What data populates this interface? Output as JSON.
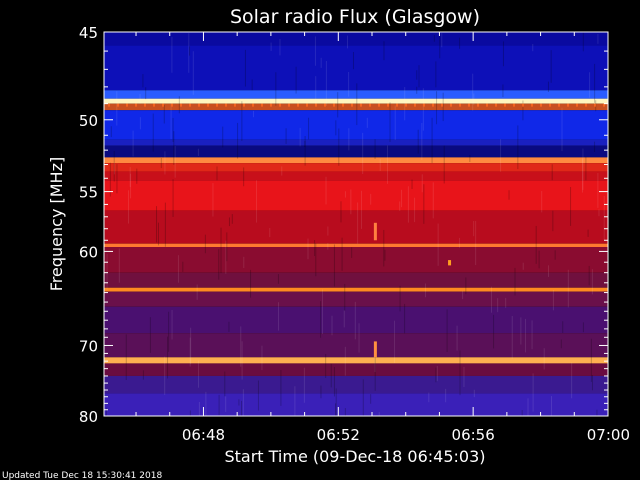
{
  "chart_data": {
    "type": "heatmap",
    "title": "Solar radio Flux (Glasgow)",
    "xlabel": "Start Time (09-Dec-18 06:45:03)",
    "ylabel": "Frequency [MHz]",
    "x_ticks": [
      "06:48",
      "06:52",
      "06:56",
      "07:00"
    ],
    "x_tick_minutes": [
      48,
      52,
      56,
      60
    ],
    "xlim_minutes": [
      45.05,
      60.0
    ],
    "y_ticks": [
      45,
      50,
      55,
      60,
      70,
      80
    ],
    "ylim_mhz": [
      45,
      80
    ],
    "y_scale": "reciprocal",
    "colormap": "blue-purple-red-yellow",
    "bands_mhz": [
      {
        "lo": 45.0,
        "hi": 45.7,
        "color": "#0a0aa0"
      },
      {
        "lo": 45.7,
        "hi": 48.2,
        "color": "#0d10b8"
      },
      {
        "lo": 48.2,
        "hi": 48.7,
        "color": "#2a5cff"
      },
      {
        "lo": 48.7,
        "hi": 49.0,
        "color": "#fff6c0"
      },
      {
        "lo": 49.0,
        "hi": 49.4,
        "color": "#c85020"
      },
      {
        "lo": 49.4,
        "hi": 51.3,
        "color": "#1028e8"
      },
      {
        "lo": 51.3,
        "hi": 51.7,
        "color": "#1a20c0"
      },
      {
        "lo": 51.7,
        "hi": 52.5,
        "color": "#0a0a80"
      },
      {
        "lo": 52.5,
        "hi": 52.9,
        "color": "#ff8a40"
      },
      {
        "lo": 52.9,
        "hi": 53.5,
        "color": "#e02818"
      },
      {
        "lo": 53.5,
        "hi": 54.2,
        "color": "#c8101a"
      },
      {
        "lo": 54.2,
        "hi": 56.5,
        "color": "#e8141a"
      },
      {
        "lo": 56.5,
        "hi": 59.3,
        "color": "#b80c1e"
      },
      {
        "lo": 59.3,
        "hi": 59.6,
        "color": "#ff7a30"
      },
      {
        "lo": 59.6,
        "hi": 62.0,
        "color": "#8a0c30"
      },
      {
        "lo": 62.0,
        "hi": 63.5,
        "color": "#70103e"
      },
      {
        "lo": 63.5,
        "hi": 63.9,
        "color": "#ff8a20"
      },
      {
        "lo": 63.9,
        "hi": 65.5,
        "color": "#6a104a"
      },
      {
        "lo": 65.5,
        "hi": 68.5,
        "color": "#4a1070"
      },
      {
        "lo": 68.5,
        "hi": 71.5,
        "color": "#5a1058"
      },
      {
        "lo": 71.5,
        "hi": 72.3,
        "color": "#ffb050"
      },
      {
        "lo": 72.3,
        "hi": 74.0,
        "color": "#6a0c40"
      },
      {
        "lo": 74.0,
        "hi": 76.5,
        "color": "#3a1a90"
      },
      {
        "lo": 76.5,
        "hi": 80.0,
        "color": "#3a20b8"
      }
    ],
    "features": [
      {
        "minute": 55.3,
        "mhz_lo": 60.8,
        "mhz_hi": 61.3,
        "color": "#ffa020"
      },
      {
        "minute": 53.1,
        "mhz_lo": 69.5,
        "mhz_hi": 71.5,
        "color": "#ff9040"
      },
      {
        "minute": 53.1,
        "mhz_lo": 57.5,
        "mhz_hi": 59.0,
        "color": "#ff8040"
      }
    ]
  },
  "footer": {
    "updated": "Updated Tue Dec 18 15:30:41 2018"
  }
}
